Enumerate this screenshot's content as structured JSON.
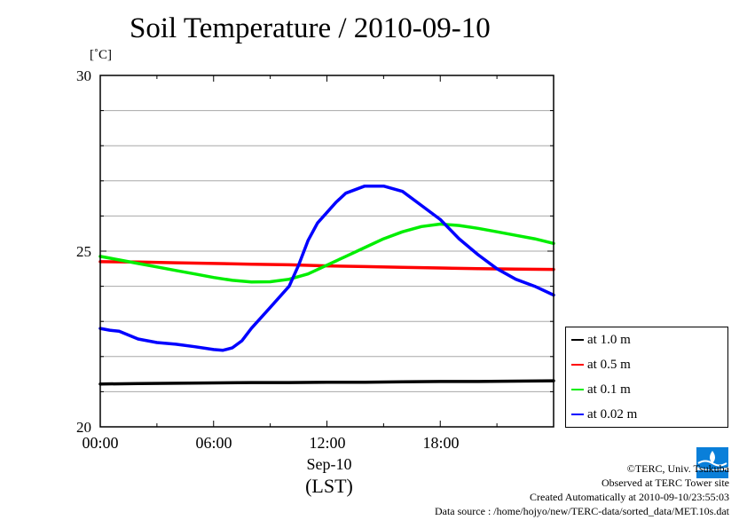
{
  "chart_data": {
    "type": "line",
    "title": "Soil Temperature / 2010-09-10",
    "unit_label": "[˚C]",
    "ylim": [
      20,
      30
    ],
    "yticks": [
      "20",
      "25",
      "30"
    ],
    "xlim": [
      0,
      24
    ],
    "xticks": [
      {
        "label": "00:00",
        "hour": 0
      },
      {
        "label": "06:00",
        "hour": 6
      },
      {
        "label": "12:00",
        "hour": 12
      },
      {
        "label": "18:00",
        "hour": 18
      }
    ],
    "xlabel_date": "Sep-10",
    "xlabel": "(LST)",
    "grid": true,
    "legend_position": "right",
    "series": [
      {
        "name": "at 1.0 m",
        "color": "#000000",
        "x": [
          0,
          2,
          4,
          6,
          8,
          10,
          12,
          14,
          16,
          18,
          20,
          22,
          24
        ],
        "y": [
          21.22,
          21.23,
          21.24,
          21.25,
          21.26,
          21.26,
          21.27,
          21.27,
          21.28,
          21.29,
          21.29,
          21.3,
          21.31
        ]
      },
      {
        "name": "at 0.5 m",
        "color": "#ff0000",
        "x": [
          0,
          2,
          4,
          6,
          8,
          10,
          12,
          14,
          16,
          18,
          20,
          22,
          24
        ],
        "y": [
          24.7,
          24.69,
          24.67,
          24.65,
          24.63,
          24.61,
          24.58,
          24.56,
          24.54,
          24.52,
          24.5,
          24.49,
          24.48
        ]
      },
      {
        "name": "at 0.1 m",
        "color": "#00ee00",
        "x": [
          0,
          1,
          2,
          3,
          4,
          5,
          6,
          7,
          8,
          9,
          10,
          11,
          12,
          13,
          14,
          15,
          16,
          17,
          18,
          19,
          20,
          21,
          22,
          23,
          24
        ],
        "y": [
          24.85,
          24.75,
          24.65,
          24.55,
          24.45,
          24.35,
          24.25,
          24.17,
          24.12,
          24.13,
          24.2,
          24.35,
          24.6,
          24.85,
          25.1,
          25.35,
          25.55,
          25.7,
          25.77,
          25.73,
          25.65,
          25.55,
          25.45,
          25.35,
          25.22
        ]
      },
      {
        "name": "at 0.02 m",
        "color": "#0000ff",
        "x": [
          0,
          0.5,
          1,
          2,
          3,
          4,
          5,
          6,
          6.5,
          7,
          7.5,
          8,
          9,
          10,
          10.5,
          11,
          11.5,
          12,
          12.5,
          13,
          14,
          15,
          16,
          17,
          18,
          19,
          20,
          21,
          22,
          23,
          24
        ],
        "y": [
          22.8,
          22.75,
          22.72,
          22.5,
          22.4,
          22.35,
          22.28,
          22.2,
          22.18,
          22.25,
          22.45,
          22.8,
          23.4,
          24.0,
          24.6,
          25.3,
          25.8,
          26.1,
          26.4,
          26.65,
          26.85,
          26.85,
          26.7,
          26.3,
          25.9,
          25.35,
          24.9,
          24.5,
          24.2,
          24.0,
          23.75
        ]
      }
    ]
  },
  "credits": {
    "copyright": "©TERC, Univ. Tsukuba",
    "site": "Observed at TERC Tower site",
    "created": "Created Automatically at 2010-09-10/23:55:03",
    "source": "Data source : /home/hojyo/new/TERC-data/sorted_data/MET.10s.dat"
  },
  "logo": {
    "text": "TERC",
    "color": "#0a7fd9"
  }
}
